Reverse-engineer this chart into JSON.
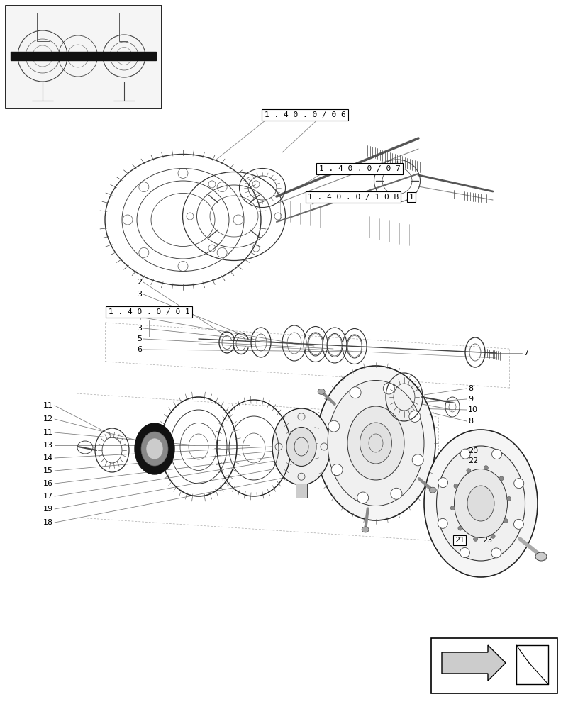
{
  "bg_color": "#ffffff",
  "fig_width": 8.08,
  "fig_height": 10.0,
  "dpi": 100
}
